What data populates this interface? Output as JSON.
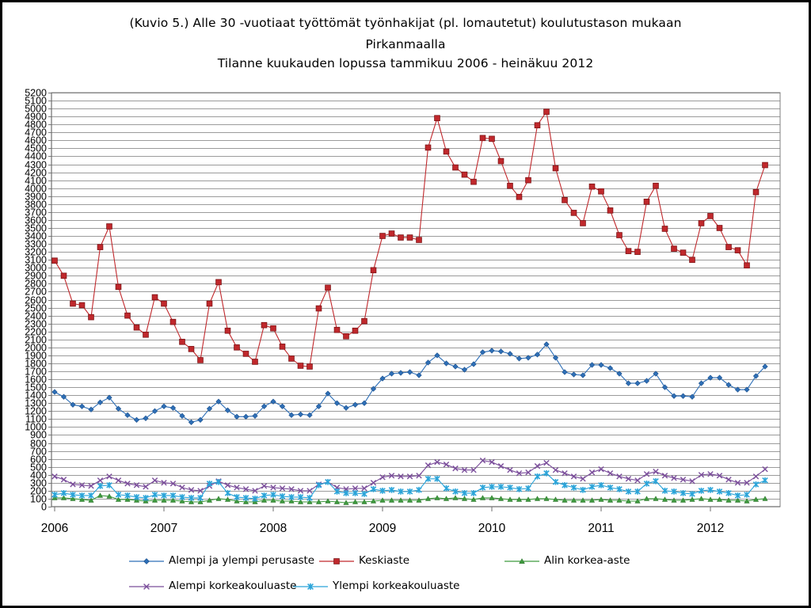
{
  "chart_data": {
    "type": "line",
    "title_lines": [
      "(Kuvio 5.) Alle 30 -vuotiaat työttömät työnhakijat (pl. lomautetut) koulutustason mukaan",
      "Pirkanmaalla",
      "Tilanne kuukauden lopussa tammikuu 2006 - heinäkuu 2012"
    ],
    "ylim": [
      0,
      5200
    ],
    "ytick_step": 100,
    "ytick_labels": [
      "0",
      "100",
      "200",
      "300",
      "400",
      "500",
      "600",
      "700",
      "800",
      "900",
      "1000",
      "1100",
      "1200",
      "1300",
      "1400",
      "1500",
      "1600",
      "1700",
      "1800",
      "1900",
      "2000",
      "2100",
      "2200",
      "2300",
      "2400",
      "2500",
      "2600",
      "2700",
      "2800",
      "2900",
      "3000",
      "3100",
      "3200",
      "3300",
      "3400",
      "3500",
      "3600",
      "3700",
      "3800",
      "3900",
      "4000",
      "4100",
      "4200",
      "4300",
      "4400",
      "4500",
      "4600",
      "4700",
      "4800",
      "4900",
      "5000",
      "5100",
      "5200"
    ],
    "x_labels": [
      "2006",
      "2007",
      "2008",
      "2009",
      "2010",
      "2011",
      "2012"
    ],
    "x_range": "tammikuu 2006 - heinäkuu 2012",
    "grid": true,
    "legend_position": "bottom",
    "series": [
      {
        "name": "Alempi ja ylempi perusaste",
        "color": "#2E6FB7",
        "marker": "diamond",
        "values": [
          1440,
          1380,
          1280,
          1260,
          1220,
          1310,
          1370,
          1230,
          1150,
          1090,
          1110,
          1200,
          1260,
          1240,
          1140,
          1060,
          1090,
          1230,
          1320,
          1210,
          1130,
          1130,
          1140,
          1260,
          1320,
          1260,
          1150,
          1160,
          1150,
          1260,
          1420,
          1300,
          1240,
          1280,
          1300,
          1480,
          1610,
          1670,
          1680,
          1690,
          1650,
          1810,
          1900,
          1800,
          1760,
          1720,
          1790,
          1940,
          1960,
          1950,
          1920,
          1860,
          1870,
          1910,
          2040,
          1870,
          1690,
          1660,
          1650,
          1780,
          1780,
          1740,
          1670,
          1550,
          1550,
          1580,
          1670,
          1500,
          1390,
          1390,
          1380,
          1550,
          1620,
          1620,
          1530,
          1470,
          1470,
          1640,
          1760
        ]
      },
      {
        "name": "Keskiaste",
        "color": "#C0282C",
        "marker": "square",
        "values": [
          3090,
          2900,
          2550,
          2530,
          2380,
          3260,
          3520,
          2760,
          2400,
          2250,
          2160,
          2630,
          2550,
          2320,
          2070,
          1980,
          1840,
          2550,
          2820,
          2210,
          2000,
          1920,
          1820,
          2280,
          2240,
          2010,
          1860,
          1770,
          1760,
          2490,
          2750,
          2220,
          2140,
          2210,
          2330,
          2970,
          3400,
          3430,
          3380,
          3380,
          3350,
          4510,
          4880,
          4460,
          4260,
          4170,
          4080,
          4630,
          4620,
          4340,
          4030,
          3890,
          4100,
          4790,
          4960,
          4250,
          3850,
          3690,
          3560,
          4020,
          3960,
          3720,
          3410,
          3210,
          3200,
          3830,
          4030,
          3490,
          3240,
          3190,
          3100,
          3560,
          3650,
          3500,
          3260,
          3220,
          3030,
          3950,
          4290
        ]
      },
      {
        "name": "Alin korkea-aste",
        "color": "#3E9A3E",
        "marker": "triangle",
        "values": [
          110,
          110,
          100,
          90,
          80,
          140,
          130,
          90,
          90,
          80,
          70,
          80,
          80,
          80,
          70,
          60,
          60,
          80,
          100,
          90,
          70,
          60,
          60,
          80,
          80,
          70,
          70,
          60,
          60,
          60,
          70,
          60,
          50,
          60,
          60,
          70,
          80,
          80,
          80,
          80,
          80,
          100,
          110,
          100,
          110,
          100,
          90,
          110,
          110,
          100,
          90,
          90,
          90,
          100,
          100,
          90,
          80,
          80,
          80,
          80,
          90,
          80,
          80,
          70,
          70,
          100,
          100,
          90,
          80,
          80,
          90,
          100,
          90,
          90,
          80,
          80,
          70,
          90,
          100
        ]
      },
      {
        "name": "Alempi korkeakouluaste",
        "color": "#7B4E9B",
        "marker": "x",
        "values": [
          380,
          340,
          280,
          270,
          260,
          330,
          380,
          330,
          290,
          270,
          250,
          330,
          300,
          290,
          240,
          210,
          200,
          260,
          320,
          270,
          240,
          220,
          200,
          260,
          240,
          230,
          220,
          200,
          200,
          280,
          310,
          240,
          220,
          230,
          230,
          300,
          370,
          390,
          380,
          380,
          390,
          520,
          560,
          530,
          480,
          460,
          460,
          580,
          560,
          510,
          460,
          420,
          430,
          510,
          550,
          460,
          420,
          380,
          350,
          430,
          470,
          420,
          380,
          350,
          330,
          410,
          440,
          390,
          360,
          340,
          320,
          400,
          410,
          390,
          340,
          300,
          300,
          380,
          470
        ]
      },
      {
        "name": "Ylempi korkeakouluaste",
        "color": "#2AA4D9",
        "marker": "asterisk",
        "values": [
          150,
          170,
          150,
          140,
          140,
          260,
          270,
          150,
          140,
          120,
          110,
          150,
          140,
          140,
          120,
          110,
          110,
          290,
          310,
          170,
          120,
          110,
          100,
          140,
          150,
          130,
          120,
          120,
          110,
          270,
          310,
          190,
          170,
          170,
          160,
          220,
          200,
          210,
          190,
          190,
          210,
          350,
          350,
          230,
          190,
          170,
          170,
          240,
          250,
          250,
          240,
          220,
          230,
          380,
          420,
          310,
          270,
          240,
          210,
          250,
          270,
          240,
          220,
          190,
          190,
          290,
          320,
          200,
          190,
          170,
          160,
          200,
          210,
          190,
          170,
          140,
          150,
          280,
          330
        ]
      }
    ]
  }
}
